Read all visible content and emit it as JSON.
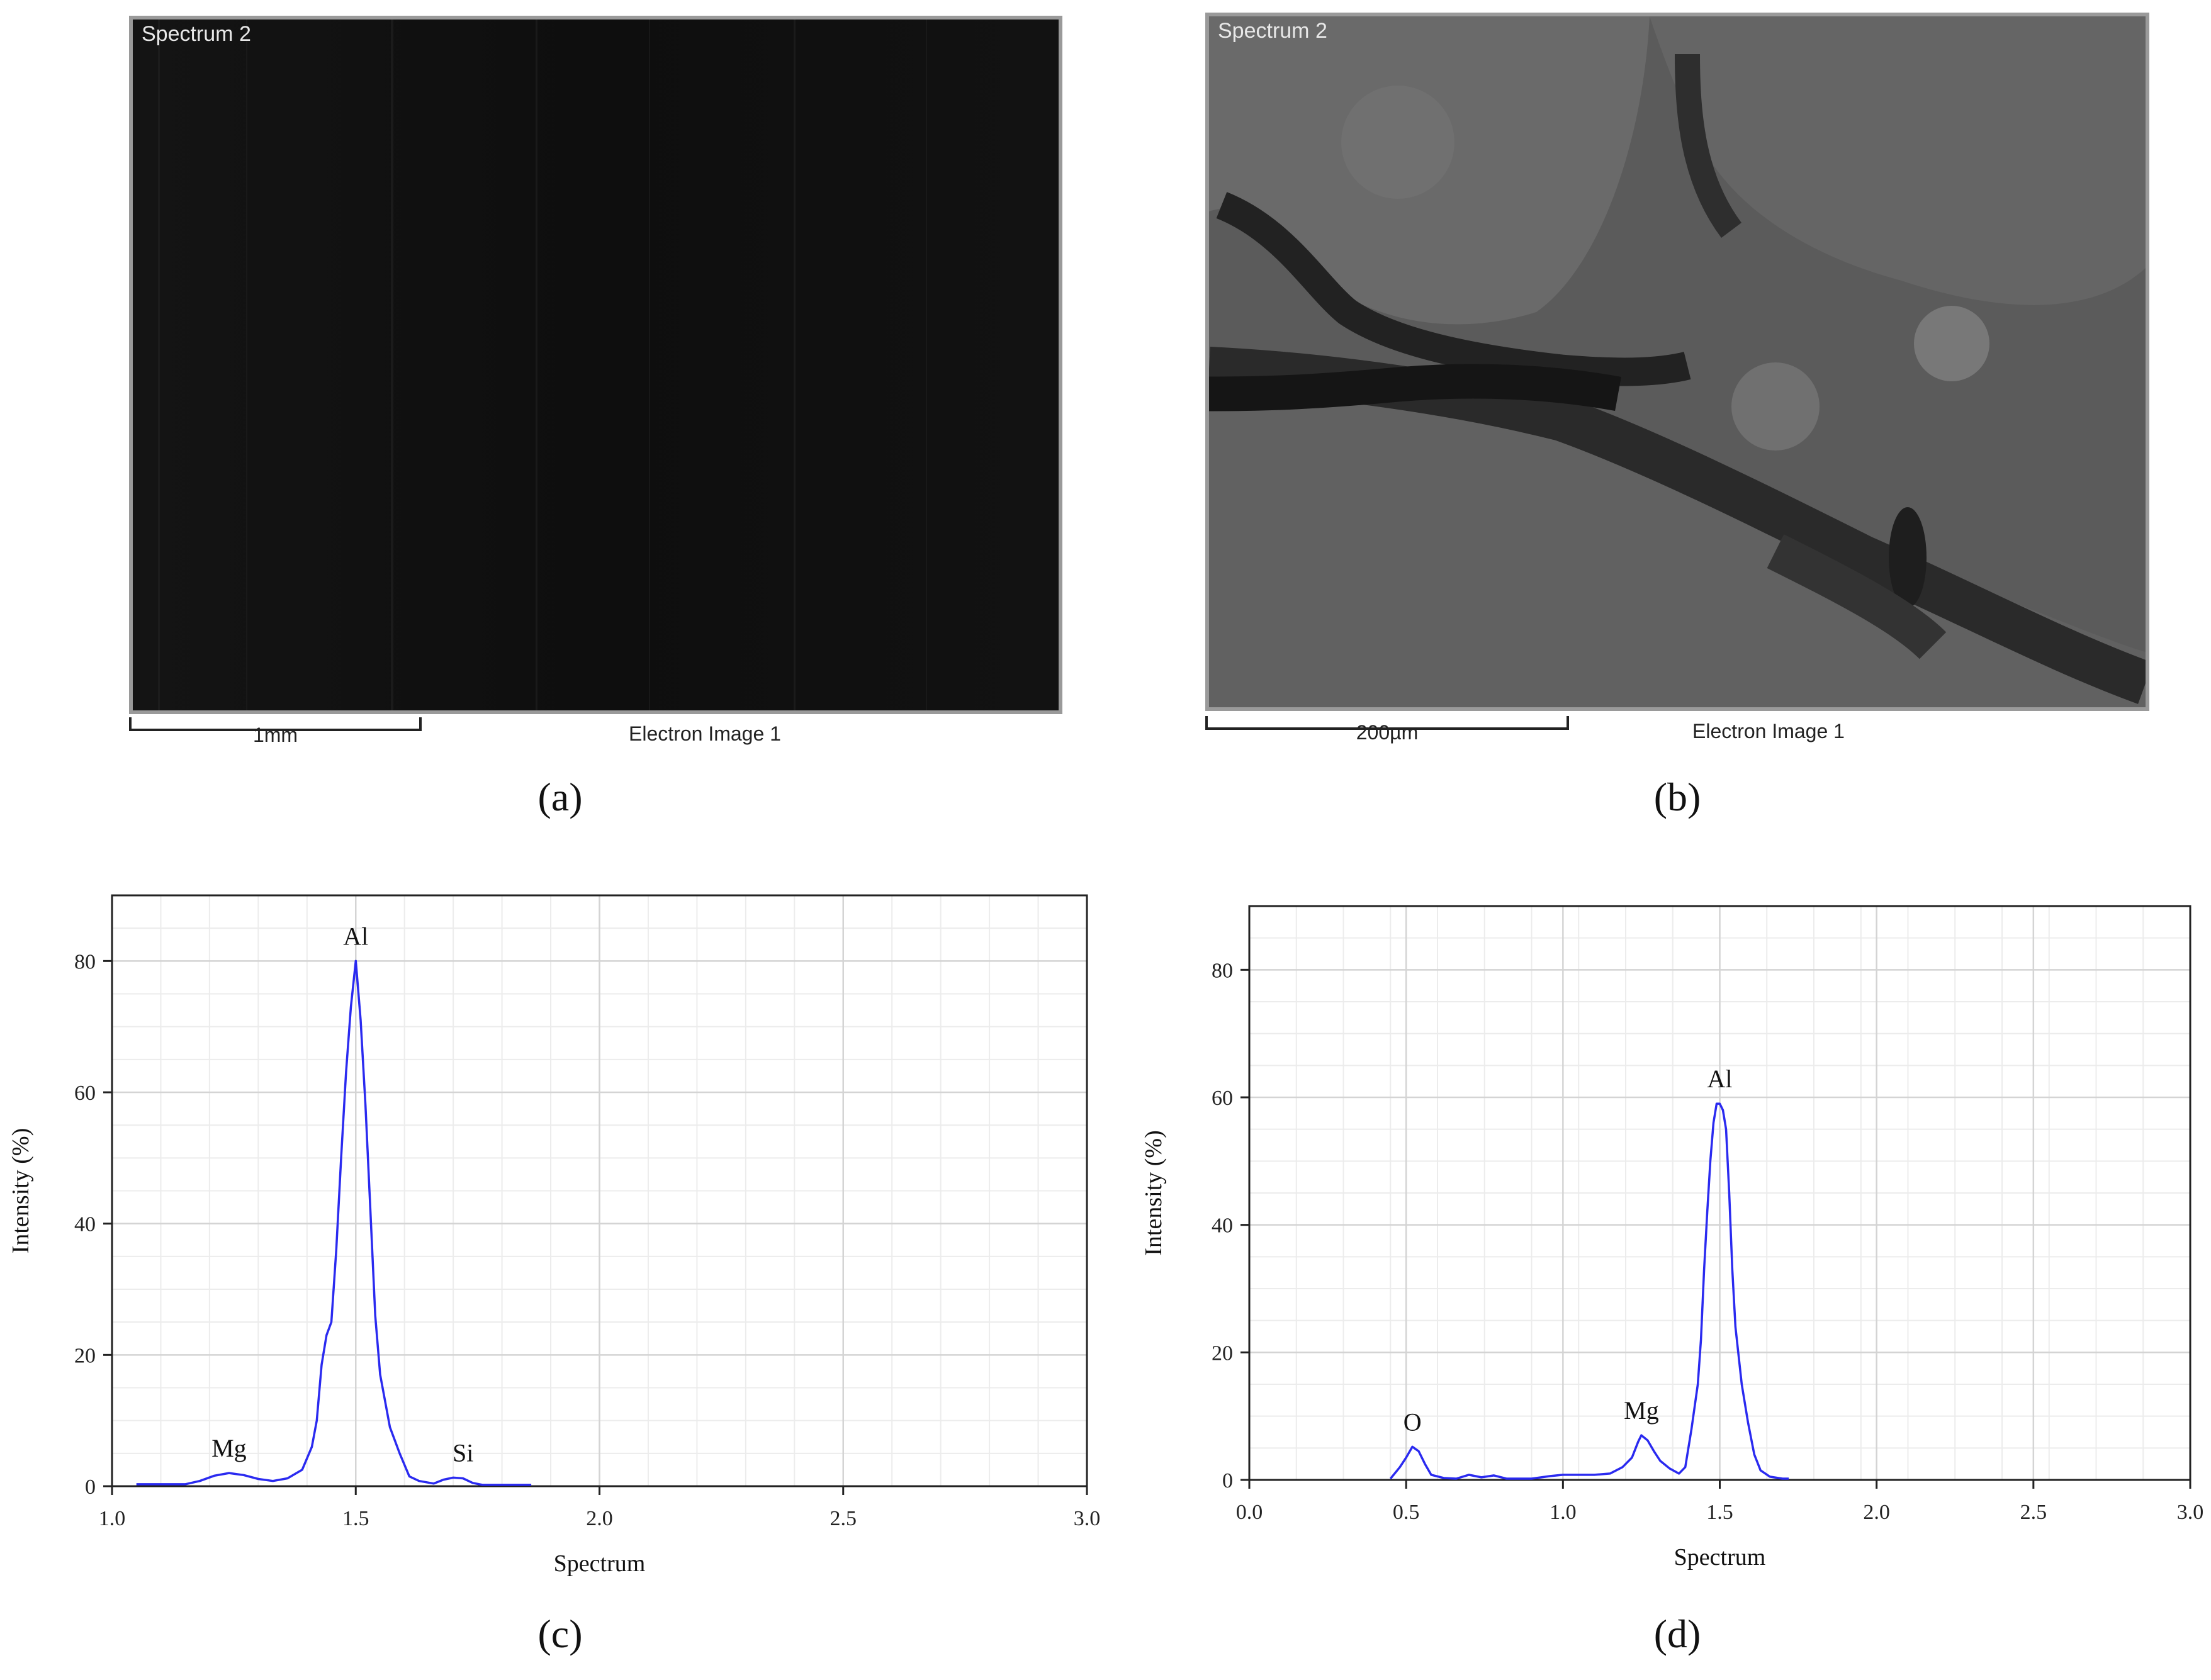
{
  "panels": {
    "a": {
      "caption": "(a)",
      "image_label": "Spectrum 2",
      "scale_text": "1mm",
      "image_title": "Electron Image 1"
    },
    "b": {
      "caption": "(b)",
      "image_label": "Spectrum 2",
      "scale_text": "200µm",
      "image_title": "Electron Image 1"
    },
    "c": {
      "caption": "(c)"
    },
    "d": {
      "caption": "(d)"
    }
  },
  "chart_data": [
    {
      "type": "line",
      "xlabel": "Spectrum",
      "ylabel": "Intensity (%)",
      "xlim": [
        1.0,
        3.0
      ],
      "ylim": [
        0,
        90
      ],
      "xticks": [
        "1.0",
        "1.5",
        "2.0",
        "2.5",
        "3.0"
      ],
      "yticks": [
        "0",
        "20",
        "40",
        "60",
        "80"
      ],
      "grid": true,
      "line_color": "#2a2af0",
      "x": [
        1.05,
        1.1,
        1.15,
        1.18,
        1.21,
        1.24,
        1.27,
        1.3,
        1.33,
        1.36,
        1.39,
        1.41,
        1.42,
        1.43,
        1.44,
        1.45,
        1.46,
        1.47,
        1.48,
        1.49,
        1.5,
        1.51,
        1.52,
        1.53,
        1.54,
        1.55,
        1.57,
        1.59,
        1.61,
        1.63,
        1.66,
        1.68,
        1.7,
        1.72,
        1.74,
        1.76,
        1.8,
        1.86
      ],
      "y": [
        0.3,
        0.3,
        0.3,
        0.8,
        1.6,
        2.0,
        1.7,
        1.1,
        0.8,
        1.2,
        2.5,
        6,
        10,
        18.5,
        23,
        25,
        36,
        50,
        63,
        73,
        80,
        71,
        58,
        42,
        26,
        17,
        9,
        5,
        1.5,
        0.8,
        0.4,
        1.0,
        1.3,
        1.2,
        0.5,
        0.2,
        0.2,
        0.2
      ],
      "annotations": [
        {
          "text": "Al",
          "x": 1.5,
          "y": 80
        },
        {
          "text": "Mg",
          "x": 1.24,
          "y": 2.0
        },
        {
          "text": "Si",
          "x": 1.72,
          "y": 1.3
        }
      ]
    },
    {
      "type": "line",
      "xlabel": "Spectrum",
      "ylabel": "Intensity (%)",
      "xlim": [
        0.0,
        3.0
      ],
      "ylim": [
        0,
        90
      ],
      "xticks": [
        "0.0",
        "0.5",
        "1.0",
        "1.5",
        "2.0",
        "2.5",
        "3.0"
      ],
      "yticks": [
        "0",
        "20",
        "40",
        "60",
        "80"
      ],
      "grid": true,
      "line_color": "#2a2af0",
      "x": [
        0.45,
        0.48,
        0.5,
        0.52,
        0.54,
        0.56,
        0.58,
        0.62,
        0.66,
        0.7,
        0.74,
        0.78,
        0.82,
        0.9,
        0.96,
        1.0,
        1.05,
        1.1,
        1.15,
        1.19,
        1.22,
        1.24,
        1.25,
        1.27,
        1.29,
        1.31,
        1.34,
        1.37,
        1.39,
        1.41,
        1.43,
        1.44,
        1.45,
        1.46,
        1.47,
        1.48,
        1.49,
        1.5,
        1.51,
        1.52,
        1.53,
        1.54,
        1.55,
        1.57,
        1.59,
        1.61,
        1.63,
        1.66,
        1.7,
        1.72
      ],
      "y": [
        0.2,
        2.0,
        3.5,
        5.2,
        4.5,
        2.5,
        0.8,
        0.3,
        0.2,
        0.8,
        0.4,
        0.7,
        0.2,
        0.2,
        0.6,
        0.8,
        0.8,
        0.8,
        1.0,
        2.0,
        3.5,
        6.0,
        7.0,
        6.2,
        4.5,
        3.0,
        1.8,
        1.0,
        2.0,
        8,
        15,
        22,
        33,
        42,
        50,
        56,
        59,
        59,
        58,
        55,
        45,
        33,
        24,
        15,
        9,
        4,
        1.5,
        0.5,
        0.2,
        0.2
      ],
      "annotations": [
        {
          "text": "Al",
          "x": 1.5,
          "y": 59
        },
        {
          "text": "Mg",
          "x": 1.25,
          "y": 7.0
        },
        {
          "text": "O",
          "x": 0.52,
          "y": 5.2
        }
      ]
    }
  ]
}
